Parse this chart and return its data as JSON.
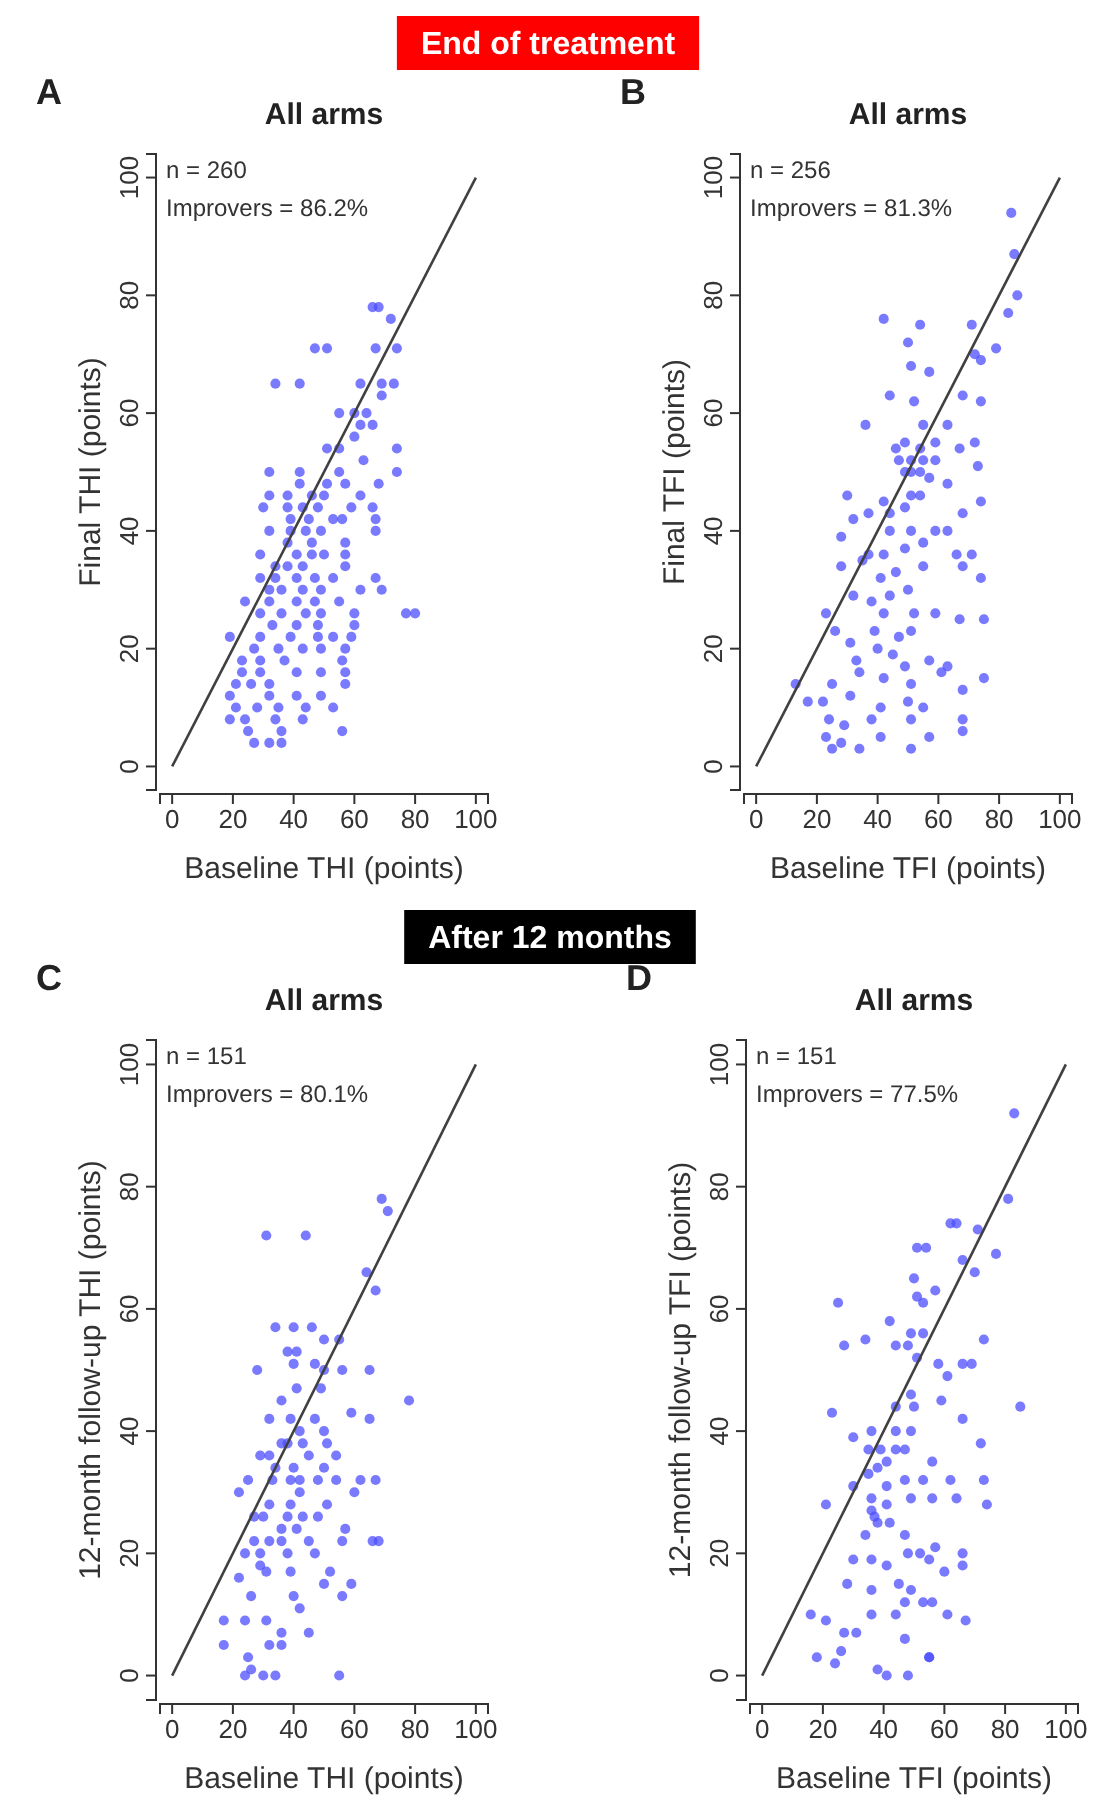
{
  "chart_data": [
    {
      "type": "scatter",
      "title": "All arms",
      "xlabel": "Baseline THI (points)",
      "ylabel": "Final THI (points)",
      "annotations": [
        "A",
        "n = 260",
        "Improvers = 86.2%",
        "End of treatment"
      ],
      "xlim": [
        -4,
        104
      ],
      "ylim": [
        -4,
        104
      ],
      "xticks": [
        0,
        20,
        40,
        60,
        80,
        100
      ],
      "yticks": [
        0,
        20,
        40,
        60,
        80,
        100
      ],
      "grid": false,
      "series": [
        {
          "marker": "circle",
          "color": "#4d4dff",
          "x": [
            66,
            68,
            72,
            47,
            51,
            67,
            74,
            34,
            42,
            62,
            69,
            73,
            69,
            55,
            60,
            64,
            62,
            66,
            60,
            51,
            55,
            74,
            63,
            32,
            42,
            55,
            74,
            42,
            51,
            57,
            68,
            32,
            38,
            46,
            50,
            62,
            30,
            38,
            43,
            48,
            59,
            66,
            39,
            45,
            53,
            56,
            67,
            32,
            39,
            44,
            49,
            67,
            38,
            46,
            57,
            29,
            41,
            46,
            50,
            57,
            34,
            38,
            43,
            57,
            29,
            34,
            41,
            47,
            53,
            67,
            32,
            36,
            43,
            49,
            62,
            69,
            24,
            32,
            41,
            47,
            55,
            29,
            36,
            44,
            49,
            60,
            77,
            80,
            33,
            41,
            48,
            60,
            19,
            29,
            39,
            48,
            53,
            59,
            27,
            35,
            43,
            49,
            57,
            23,
            29,
            37,
            56,
            23,
            29,
            41,
            49,
            57,
            21,
            26,
            32,
            57,
            19,
            32,
            41,
            49,
            21,
            28,
            35,
            44,
            53,
            19,
            24,
            34,
            43,
            25,
            36,
            56,
            27,
            32,
            36
          ],
          "values": [
            78,
            78,
            76,
            71,
            71,
            71,
            71,
            65,
            65,
            65,
            65,
            65,
            63,
            60,
            60,
            60,
            58,
            58,
            56,
            54,
            54,
            54,
            52,
            50,
            50,
            50,
            50,
            48,
            48,
            48,
            48,
            46,
            46,
            46,
            46,
            46,
            44,
            44,
            44,
            44,
            44,
            44,
            42,
            42,
            42,
            42,
            42,
            40,
            40,
            40,
            40,
            40,
            38,
            38,
            38,
            36,
            36,
            36,
            36,
            36,
            34,
            34,
            34,
            34,
            32,
            32,
            32,
            32,
            32,
            32,
            30,
            30,
            30,
            30,
            30,
            30,
            28,
            28,
            28,
            28,
            28,
            26,
            26,
            26,
            26,
            26,
            26,
            26,
            24,
            24,
            24,
            24,
            22,
            22,
            22,
            22,
            22,
            22,
            20,
            20,
            20,
            20,
            20,
            18,
            18,
            18,
            18,
            16,
            16,
            16,
            16,
            16,
            14,
            14,
            14,
            14,
            12,
            12,
            12,
            12,
            10,
            10,
            10,
            10,
            10,
            8,
            8,
            8,
            8,
            6,
            6,
            6,
            4,
            4,
            4
          ]
        },
        {
          "type": "line",
          "color": "#404040",
          "x": [
            0,
            100
          ],
          "values": [
            0,
            100
          ]
        }
      ]
    },
    {
      "type": "scatter",
      "title": "All arms",
      "xlabel": "Baseline TFI (points)",
      "ylabel": "Final TFI (points)",
      "annotations": [
        "B",
        "n = 256",
        "Improvers = 81.3%"
      ],
      "xlim": [
        -4,
        104
      ],
      "ylim": [
        -4,
        104
      ],
      "xticks": [
        0,
        20,
        40,
        60,
        80,
        100
      ],
      "yticks": [
        0,
        20,
        40,
        60,
        80,
        100
      ],
      "grid": false,
      "series": [
        {
          "marker": "circle",
          "color": "#4d4dff",
          "x": [
            84,
            85,
            86,
            83,
            42,
            54,
            71,
            50,
            79,
            72,
            74,
            51,
            57,
            44,
            52,
            68,
            74,
            36,
            55,
            63,
            46,
            49,
            54,
            59,
            67,
            72,
            47,
            51,
            55,
            59,
            73,
            49,
            51,
            54,
            57,
            30,
            42,
            51,
            54,
            63,
            68,
            74,
            32,
            37,
            44,
            49,
            44,
            51,
            59,
            63,
            28,
            37,
            42,
            49,
            55,
            66,
            71,
            68,
            74,
            28,
            35,
            41,
            46,
            55,
            32,
            38,
            44,
            50,
            59,
            23,
            42,
            52,
            26,
            31,
            39,
            47,
            51,
            67,
            75,
            33,
            40,
            45,
            49,
            57,
            63,
            13,
            25,
            34,
            42,
            51,
            61,
            68,
            75,
            17,
            22,
            31,
            41,
            50,
            55,
            24,
            29,
            38,
            51,
            68,
            23,
            28,
            41,
            57,
            68,
            25,
            34,
            51
          ],
          "values": [
            94,
            87,
            80,
            77,
            76,
            75,
            75,
            72,
            71,
            70,
            69,
            68,
            67,
            63,
            62,
            63,
            62,
            58,
            58,
            58,
            54,
            55,
            54,
            55,
            54,
            55,
            52,
            52,
            52,
            52,
            51,
            50,
            50,
            50,
            49,
            46,
            45,
            46,
            46,
            48,
            43,
            45,
            42,
            43,
            43,
            44,
            40,
            40,
            40,
            40,
            39,
            36,
            36,
            37,
            38,
            36,
            36,
            34,
            32,
            34,
            35,
            32,
            33,
            34,
            29,
            28,
            29,
            30,
            26,
            26,
            26,
            26,
            23,
            21,
            23,
            22,
            23,
            25,
            25,
            18,
            20,
            19,
            17,
            18,
            17,
            14,
            14,
            16,
            15,
            14,
            16,
            13,
            15,
            11,
            11,
            12,
            10,
            11,
            10,
            8,
            7,
            8,
            8,
            8,
            5,
            4,
            5,
            5,
            6,
            3,
            3,
            3
          ]
        },
        {
          "type": "line",
          "color": "#404040",
          "x": [
            0,
            100
          ],
          "values": [
            0,
            100
          ]
        }
      ]
    },
    {
      "type": "scatter",
      "title": "All arms",
      "xlabel": "Baseline THI (points)",
      "ylabel": "12-month follow-up THI (points)",
      "annotations": [
        "C",
        "n = 151",
        "Improvers = 80.1%",
        "After 12 months"
      ],
      "xlim": [
        -4,
        104
      ],
      "ylim": [
        -4,
        104
      ],
      "xticks": [
        0,
        20,
        40,
        60,
        80,
        100
      ],
      "yticks": [
        0,
        20,
        40,
        60,
        80,
        100
      ],
      "grid": false,
      "series": [
        {
          "marker": "circle",
          "color": "#4d4dff",
          "x": [
            69,
            71,
            31,
            44,
            64,
            67,
            34,
            40,
            46,
            38,
            41,
            50,
            55,
            40,
            47,
            28,
            50,
            56,
            65,
            41,
            49,
            36,
            59,
            78,
            32,
            39,
            47,
            42,
            50,
            65,
            36,
            38,
            43,
            51,
            29,
            32,
            45,
            54,
            34,
            40,
            50,
            25,
            33,
            39,
            42,
            48,
            54,
            62,
            67,
            22,
            42,
            60,
            32,
            39,
            51,
            27,
            30,
            38,
            43,
            48,
            36,
            41,
            57,
            27,
            32,
            36,
            45,
            56,
            66,
            68,
            24,
            29,
            38,
            47,
            29,
            31,
            52,
            50,
            59,
            22,
            39,
            26,
            40,
            42,
            56,
            17,
            24,
            31,
            36,
            45,
            17,
            32,
            36,
            25,
            26,
            24,
            30,
            34,
            55
          ],
          "values": [
            78,
            76,
            72,
            72,
            66,
            63,
            57,
            57,
            57,
            53,
            53,
            55,
            55,
            51,
            51,
            50,
            50,
            50,
            50,
            47,
            47,
            45,
            43,
            45,
            42,
            42,
            42,
            40,
            40,
            42,
            38,
            38,
            38,
            38,
            36,
            36,
            36,
            36,
            34,
            34,
            34,
            32,
            32,
            32,
            32,
            32,
            32,
            32,
            32,
            30,
            30,
            30,
            28,
            28,
            28,
            26,
            26,
            26,
            26,
            26,
            24,
            24,
            24,
            22,
            22,
            22,
            22,
            22,
            22,
            22,
            20,
            20,
            20,
            20,
            18,
            17,
            17,
            15,
            15,
            16,
            17,
            13,
            13,
            11,
            13,
            9,
            9,
            9,
            7,
            7,
            5,
            5,
            5,
            3,
            1,
            0,
            0,
            0,
            0
          ]
        },
        {
          "type": "line",
          "color": "#404040",
          "x": [
            0,
            100
          ],
          "values": [
            0,
            100
          ]
        }
      ]
    },
    {
      "type": "scatter",
      "title": "All arms",
      "xlabel": "Baseline TFI (points)",
      "ylabel": "12-month follow-up TFI (points)",
      "annotations": [
        "D",
        "n = 151",
        "Improvers = 77.5%"
      ],
      "xlim": [
        -4,
        104
      ],
      "ylim": [
        -4,
        104
      ],
      "xticks": [
        0,
        20,
        40,
        60,
        80,
        100
      ],
      "yticks": [
        0,
        20,
        40,
        60,
        80,
        100
      ],
      "grid": false,
      "series": [
        {
          "marker": "circle",
          "color": "#4d4dff",
          "x": [
            83,
            81,
            62,
            64,
            71,
            51,
            54,
            77,
            66,
            70,
            50,
            57,
            51,
            53,
            25,
            42,
            49,
            53,
            48,
            51,
            27,
            34,
            44,
            73,
            66,
            69,
            58,
            61,
            49,
            44,
            50,
            59,
            23,
            85,
            30,
            36,
            44,
            49,
            66,
            35,
            39,
            44,
            47,
            38,
            41,
            35,
            56,
            62,
            72,
            30,
            36,
            41,
            47,
            53,
            21,
            36,
            41,
            49,
            56,
            64,
            73,
            74,
            34,
            38,
            42,
            37,
            47,
            52,
            57,
            66,
            66,
            30,
            36,
            41,
            48,
            55,
            60,
            28,
            36,
            45,
            49,
            53,
            61,
            67,
            16,
            21,
            27,
            31,
            36,
            44,
            47,
            56,
            18,
            24,
            26,
            47,
            55,
            55,
            38,
            41,
            48
          ],
          "values": [
            92,
            78,
            74,
            74,
            73,
            70,
            70,
            69,
            68,
            66,
            65,
            63,
            62,
            61,
            61,
            58,
            56,
            56,
            54,
            52,
            54,
            55,
            54,
            55,
            51,
            51,
            51,
            49,
            46,
            44,
            44,
            45,
            43,
            44,
            39,
            40,
            40,
            40,
            42,
            37,
            37,
            37,
            37,
            34,
            35,
            33,
            35,
            32,
            38,
            31,
            29,
            31,
            32,
            32,
            28,
            27,
            28,
            29,
            29,
            29,
            32,
            28,
            23,
            25,
            25,
            26,
            23,
            20,
            21,
            20,
            18,
            19,
            19,
            18,
            20,
            19,
            17,
            15,
            14,
            15,
            14,
            12,
            10,
            9,
            10,
            9,
            7,
            7,
            10,
            10,
            12,
            12,
            3,
            2,
            4,
            6,
            3,
            3,
            1,
            0,
            0
          ]
        },
        {
          "type": "line",
          "color": "#404040",
          "x": [
            0,
            100
          ],
          "values": [
            0,
            100
          ]
        }
      ]
    }
  ]
}
